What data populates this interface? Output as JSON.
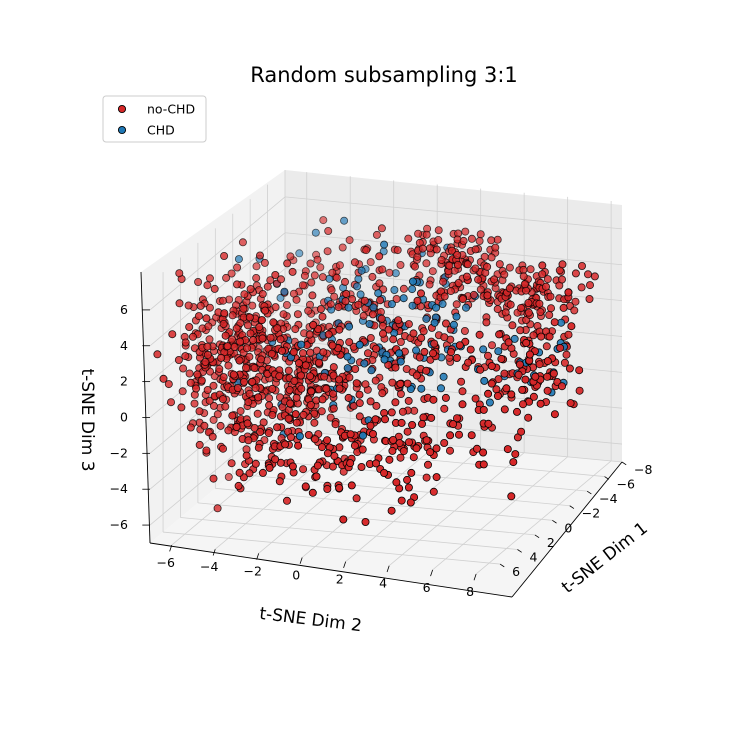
{
  "chart_data": {
    "type": "scatter",
    "title": "Random subsampling 3:1",
    "xlabel": "t-SNE Dim 1",
    "ylabel": "t-SNE Dim 2",
    "zlabel": "t-SNE Dim 3",
    "xticks": [
      "−8",
      "−6",
      "−4",
      "−2",
      "0",
      "2",
      "4",
      "6"
    ],
    "yticks": [
      "−6",
      "−4",
      "−2",
      "0",
      "2",
      "4",
      "6",
      "8"
    ],
    "zticks": [
      "−6",
      "−4",
      "−2",
      "0",
      "2",
      "4",
      "6"
    ],
    "xlim": [
      -8,
      7.5
    ],
    "ylim": [
      -7,
      8.5
    ],
    "zlim": [
      -7,
      7.5
    ],
    "grid": true,
    "legend_position": "top-left",
    "series": [
      {
        "name": "no-CHD",
        "color": "#d62728",
        "edge": "#000000"
      },
      {
        "name": "CHD",
        "color": "#1f77b4",
        "edge": "#000000"
      }
    ],
    "clusters": [
      {
        "series": "no-CHD",
        "center": [
          2,
          -5.5,
          1.5
        ],
        "spread": [
          2.2,
          1.2,
          2.2
        ],
        "n": 320
      },
      {
        "series": "no-CHD",
        "center": [
          1,
          -2.5,
          0
        ],
        "spread": [
          2.0,
          1.5,
          1.8
        ],
        "n": 280
      },
      {
        "series": "no-CHD",
        "center": [
          -6,
          1.5,
          4
        ],
        "spread": [
          1.5,
          1.5,
          1.0
        ],
        "n": 150
      },
      {
        "series": "no-CHD",
        "center": [
          -7,
          5,
          2.5
        ],
        "spread": [
          1.2,
          1.4,
          0.8
        ],
        "n": 110
      },
      {
        "series": "no-CHD",
        "center": [
          -1,
          2,
          1
        ],
        "spread": [
          2.0,
          1.5,
          1.5
        ],
        "n": 120
      },
      {
        "series": "no-CHD",
        "center": [
          -3,
          6.5,
          0
        ],
        "spread": [
          1.8,
          1.0,
          1.4
        ],
        "n": 110
      },
      {
        "series": "no-CHD",
        "center": [
          2.5,
          2.5,
          -2.5
        ],
        "spread": [
          1.8,
          1.8,
          1.2
        ],
        "n": 110
      },
      {
        "series": "no-CHD",
        "center": [
          4,
          -1,
          -3
        ],
        "spread": [
          2.0,
          2.0,
          1.2
        ],
        "n": 90
      },
      {
        "series": "no-CHD",
        "center": [
          -3,
          -3,
          2.5
        ],
        "spread": [
          2.5,
          1.5,
          1.5
        ],
        "n": 100
      },
      {
        "series": "CHD",
        "center": [
          -4,
          -2,
          2.5
        ],
        "spread": [
          2.5,
          2.5,
          1.5
        ],
        "n": 45
      },
      {
        "series": "CHD",
        "center": [
          -2,
          2.5,
          1.5
        ],
        "spread": [
          2.0,
          1.5,
          1.5
        ],
        "n": 35
      },
      {
        "series": "CHD",
        "center": [
          0,
          -1,
          1
        ],
        "spread": [
          2.5,
          2.0,
          2.0
        ],
        "n": 40
      },
      {
        "series": "CHD",
        "center": [
          -3.5,
          6.5,
          0
        ],
        "spread": [
          1.5,
          1.0,
          1.0
        ],
        "n": 15
      }
    ]
  }
}
